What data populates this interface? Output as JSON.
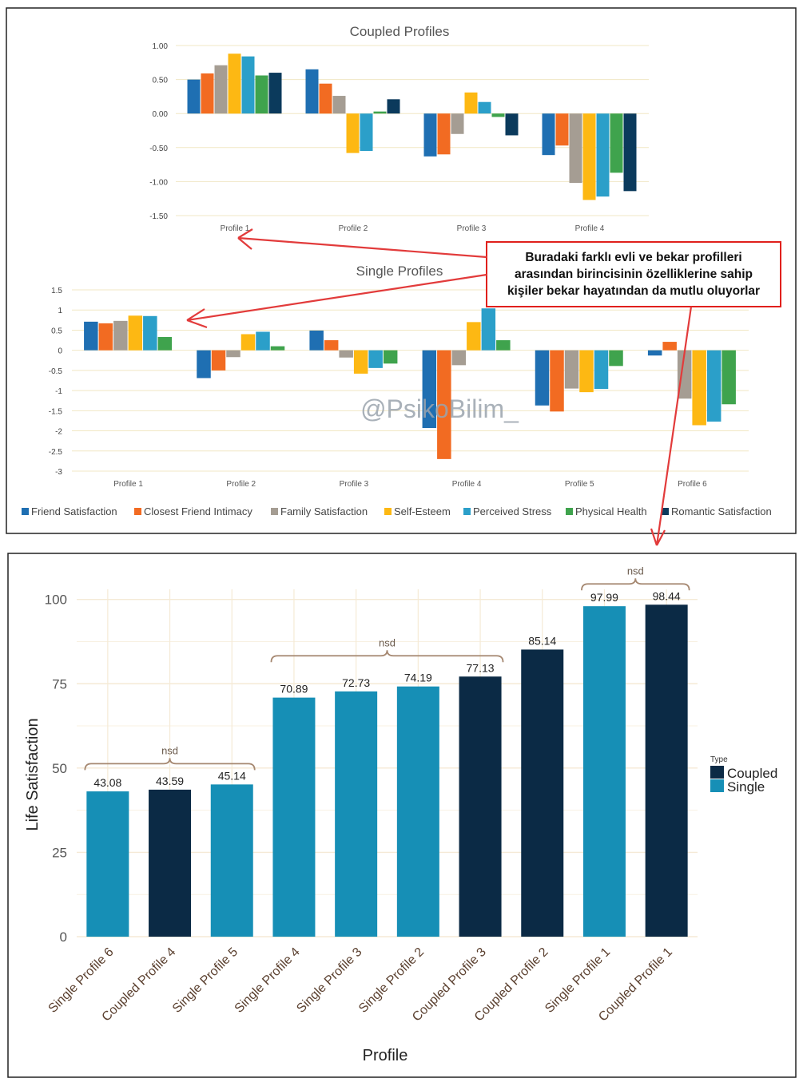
{
  "colors": {
    "friend": "#1f6fb2",
    "closest": "#f26b22",
    "family": "#a59d93",
    "esteem": "#fdb813",
    "stress": "#2b9fc9",
    "physical": "#3fa34d",
    "romantic": "#0b3a5c",
    "coupled": "#0b2a45",
    "single": "#168fb6",
    "annotation_border": "#e0201c",
    "arrow": "#e23b3b",
    "grid_top": "#f3eccb",
    "grid_bottom": "#f5ead6",
    "brace": "#a58770",
    "axis_label": "#5a3f2e"
  },
  "annotation": {
    "text": "Buradaki farklı evli ve bekar profilleri arasından birincisinin özelliklerine sahip kişiler bekar hayatından da mutlu oluyorlar",
    "lines": [
      "Buradaki farklı evli ve bekar profilleri",
      "arasından birincisinin özelliklerine sahip",
      "kişiler bekar hayatından da mutlu oluyorlar"
    ]
  },
  "watermark": "@PsikoBilim_",
  "chart_data": [
    {
      "type": "bar",
      "title": "Coupled Profiles",
      "categories": [
        "Profile 1",
        "Profile 2",
        "Profile 3",
        "Profile 4"
      ],
      "ylim": [
        -1.5,
        1.0
      ],
      "yticks": [
        1.0,
        0.5,
        0.0,
        -0.5,
        -1.0,
        -1.5
      ],
      "ytick_labels": [
        "1.00",
        "0.50",
        "0.00",
        "-0.50",
        "-1.00",
        "-1.50"
      ],
      "series": [
        {
          "name": "Friend Satisfaction",
          "color_key": "friend",
          "values": [
            0.5,
            0.65,
            -0.63,
            -0.61
          ]
        },
        {
          "name": "Closest Friend Intimacy",
          "color_key": "closest",
          "values": [
            0.59,
            0.44,
            -0.6,
            -0.47
          ]
        },
        {
          "name": "Family Satisfaction",
          "color_key": "family",
          "values": [
            0.71,
            0.26,
            -0.3,
            -1.02
          ]
        },
        {
          "name": "Self-Esteem",
          "color_key": "esteem",
          "values": [
            0.88,
            -0.58,
            0.31,
            -1.27
          ]
        },
        {
          "name": "Perceived Stress",
          "color_key": "stress",
          "values": [
            0.84,
            -0.55,
            0.17,
            -1.22
          ]
        },
        {
          "name": "Physical Health",
          "color_key": "physical",
          "values": [
            0.56,
            0.03,
            -0.05,
            -0.87
          ]
        },
        {
          "name": "Romantic Satisfaction",
          "color_key": "romantic",
          "values": [
            0.6,
            0.21,
            -0.32,
            -1.14
          ]
        }
      ]
    },
    {
      "type": "bar",
      "title": "Single Profiles",
      "categories": [
        "Profile 1",
        "Profile 2",
        "Profile 3",
        "Profile 4",
        "Profile 5",
        "Profile 6"
      ],
      "ylim": [
        -3,
        1.5
      ],
      "yticks": [
        1.5,
        1,
        0.5,
        0,
        -0.5,
        -1,
        -1.5,
        -2,
        -2.5,
        -3
      ],
      "ytick_labels": [
        "1.5",
        "1",
        "0.5",
        "0",
        "-0.5",
        "-1",
        "-1.5",
        "-2",
        "-2.5",
        "-3"
      ],
      "series": [
        {
          "name": "Friend Satisfaction",
          "color_key": "friend",
          "values": [
            0.71,
            -0.69,
            0.49,
            -1.93,
            -1.37,
            -0.13
          ]
        },
        {
          "name": "Closest Friend Intimacy",
          "color_key": "closest",
          "values": [
            0.67,
            -0.5,
            0.25,
            -2.7,
            -1.52,
            0.21
          ]
        },
        {
          "name": "Family Satisfaction",
          "color_key": "family",
          "values": [
            0.73,
            -0.17,
            -0.18,
            -0.37,
            -0.95,
            -1.2
          ]
        },
        {
          "name": "Self-Esteem",
          "color_key": "esteem",
          "values": [
            0.86,
            0.4,
            -0.58,
            0.7,
            -1.04,
            -1.86
          ]
        },
        {
          "name": "Perceived Stress",
          "color_key": "stress",
          "values": [
            0.85,
            0.46,
            -0.44,
            1.04,
            -0.96,
            -1.77
          ]
        },
        {
          "name": "Physical Health",
          "color_key": "physical",
          "values": [
            0.33,
            0.1,
            -0.33,
            0.25,
            -0.39,
            -1.34
          ]
        }
      ]
    },
    {
      "type": "bar",
      "title": "",
      "xlabel": "Profile",
      "ylabel": "Life Satisfaction",
      "ylim": [
        0,
        103
      ],
      "yticks": [
        0,
        25,
        50,
        75,
        100
      ],
      "ytick_labels": [
        "0",
        "25",
        "50",
        "75",
        "100"
      ],
      "categories": [
        "Single Profile 6",
        "Coupled Profile 4",
        "Single Profile 5",
        "Single Profile 4",
        "Single Profile 3",
        "Single Profile 2",
        "Coupled Profile 3",
        "Coupled Profile 2",
        "Single Profile 1",
        "Coupled Profile 1"
      ],
      "values": [
        43.08,
        43.59,
        45.14,
        70.89,
        72.73,
        74.19,
        77.13,
        85.14,
        97.99,
        98.44
      ],
      "value_labels": [
        "43.08",
        "43.59",
        "45.14",
        "70.89",
        "72.73",
        "74.19",
        "77.13",
        "85.14",
        "97.99",
        "98.44"
      ],
      "types": [
        "Single",
        "Coupled",
        "Single",
        "Single",
        "Single",
        "Single",
        "Coupled",
        "Coupled",
        "Single",
        "Coupled"
      ],
      "legend": {
        "title": "Type",
        "entries": [
          "Coupled",
          "Single"
        ],
        "position": "right"
      },
      "annotations": [
        {
          "label": "nsd",
          "from_index": 0,
          "to_index": 2
        },
        {
          "label": "nsd",
          "from_index": 3,
          "to_index": 6
        },
        {
          "label": "nsd",
          "from_index": 8,
          "to_index": 9
        }
      ]
    }
  ]
}
